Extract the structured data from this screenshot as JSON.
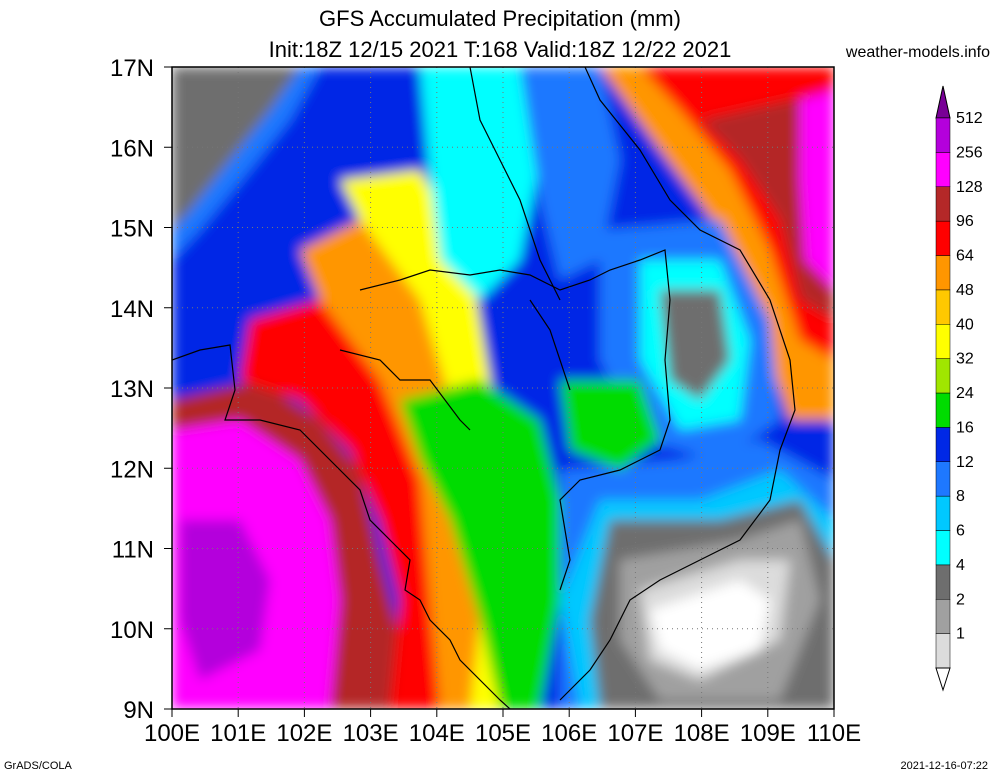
{
  "title_line1": "GFS Accumulated Precipitation (mm)",
  "title_line2": "Init:18Z 12/15 2021 T:168 Valid:18Z 12/22 2021",
  "site": "weather-models.info",
  "footer_left": "GrADS/COLA",
  "footer_right": "2021-12-16-07:22",
  "map": {
    "lon_range": [
      100,
      110
    ],
    "lat_range": [
      9,
      17
    ],
    "lon_labels": [
      "100E",
      "101E",
      "102E",
      "103E",
      "104E",
      "105E",
      "106E",
      "107E",
      "108E",
      "109E",
      "110E"
    ],
    "lat_labels": [
      "9N",
      "10N",
      "11N",
      "12N",
      "13N",
      "14N",
      "15N",
      "16N",
      "17N"
    ],
    "grid_lines": "dotted"
  },
  "colorbar": {
    "levels": [
      {
        "label": "1",
        "color": "#dcdcdc"
      },
      {
        "label": "2",
        "color": "#a0a0a0"
      },
      {
        "label": "4",
        "color": "#6e6e6e"
      },
      {
        "label": "6",
        "color": "#00ffff"
      },
      {
        "label": "8",
        "color": "#00c8ff"
      },
      {
        "label": "12",
        "color": "#1e78ff"
      },
      {
        "label": "16",
        "color": "#0028e6"
      },
      {
        "label": "24",
        "color": "#00dc00"
      },
      {
        "label": "32",
        "color": "#a0e600"
      },
      {
        "label": "40",
        "color": "#ffff00"
      },
      {
        "label": "48",
        "color": "#ffc800"
      },
      {
        "label": "64",
        "color": "#ff9600"
      },
      {
        "label": "96",
        "color": "#ff0000"
      },
      {
        "label": "128",
        "color": "#b42828"
      },
      {
        "label": "256",
        "color": "#ff00ff"
      },
      {
        "label": "512",
        "color": "#b400dc"
      }
    ],
    "top_color": "#780096",
    "bottom_color": "#ffffff"
  }
}
